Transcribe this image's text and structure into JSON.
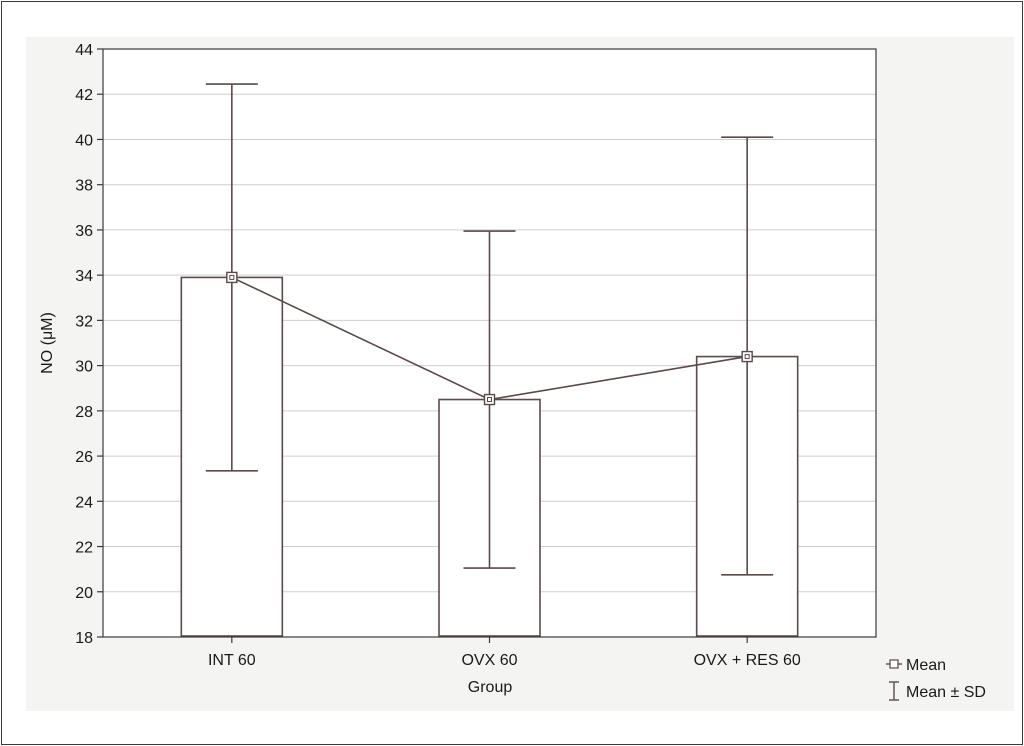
{
  "chart_data": {
    "type": "bar",
    "categories": [
      "INT 60",
      "OVX 60",
      "OVX + RES 60"
    ],
    "values": [
      33.9,
      28.5,
      30.4
    ],
    "error_low": [
      25.35,
      21.05,
      20.75
    ],
    "error_high": [
      42.45,
      35.95,
      40.1
    ],
    "xlabel": "Group",
    "ylabel": "NO (μM)",
    "ylim": [
      18,
      44
    ],
    "yticks": [
      18,
      20,
      22,
      24,
      26,
      28,
      30,
      32,
      34,
      36,
      38,
      40,
      42,
      44
    ],
    "grid": true,
    "mean_line": true,
    "legend_position": "bottom-right",
    "legend": [
      {
        "symbol": "square-marker",
        "label": "Mean"
      },
      {
        "symbol": "whisker",
        "label": "Mean ± SD"
      }
    ],
    "colors": {
      "line": "#5a4a4a",
      "bar_edge": "#5a4a4a",
      "grid": "#cfcfcf",
      "plot_bg": "#ffffff",
      "outer_bg": "#f4f4f2"
    }
  }
}
